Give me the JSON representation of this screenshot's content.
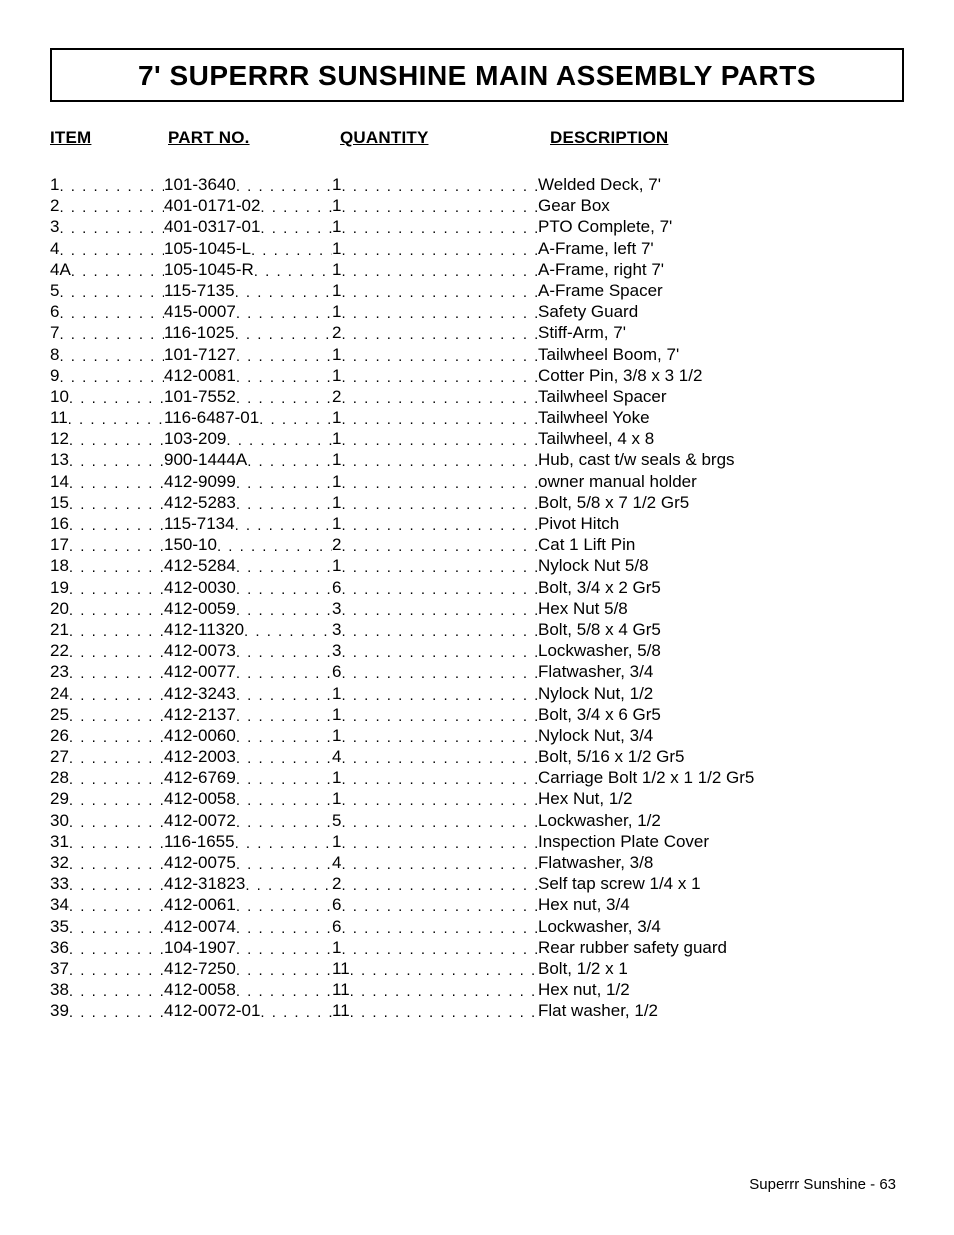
{
  "title": "7' SUPERRR SUNSHINE MAIN ASSEMBLY PARTS",
  "headers": {
    "item": "ITEM",
    "part": "PART NO.",
    "qty": "QUANTITY",
    "desc": "DESCRIPTION"
  },
  "footer": "Superrr Sunshine - 63",
  "rows": [
    {
      "item": "1",
      "part": "101-3640",
      "qty": "1",
      "desc": "Welded Deck, 7'"
    },
    {
      "item": "2",
      "part": "401-0171-02",
      "qty": "1",
      "desc": "Gear Box"
    },
    {
      "item": "3",
      "part": "401-0317-01",
      "qty": "1",
      "desc": "PTO Complete, 7'"
    },
    {
      "item": "4",
      "part": "105-1045-L",
      "qty": "1",
      "desc": "A-Frame, left 7'"
    },
    {
      "item": "4A",
      "part": "105-1045-R",
      "qty": "1",
      "desc": "A-Frame, right 7'"
    },
    {
      "item": "5",
      "part": "115-7135",
      "qty": "1",
      "desc": "A-Frame Spacer"
    },
    {
      "item": "6",
      "part": "415-0007",
      "qty": "1",
      "desc": "Safety Guard"
    },
    {
      "item": "7",
      "part": "116-1025",
      "qty": "2",
      "desc": "Stiff-Arm, 7'"
    },
    {
      "item": "8",
      "part": "101-7127",
      "qty": "1",
      "desc": "Tailwheel Boom, 7'"
    },
    {
      "item": "9",
      "part": "412-0081",
      "qty": "1",
      "desc": "Cotter Pin, 3/8 x 3 1/2"
    },
    {
      "item": "10",
      "part": "101-7552",
      "qty": "2",
      "desc": "Tailwheel Spacer"
    },
    {
      "item": "11",
      "part": "116-6487-01",
      "qty": "1",
      "desc": "Tailwheel Yoke"
    },
    {
      "item": "12",
      "part": "103-209",
      "qty": "1",
      "desc": "Tailwheel, 4 x 8"
    },
    {
      "item": "13",
      "part": "900-1444A",
      "qty": "1",
      "desc": "Hub, cast t/w seals & brgs"
    },
    {
      "item": "14",
      "part": "412-9099",
      "qty": "1",
      "desc": "owner manual holder"
    },
    {
      "item": "15",
      "part": "412-5283",
      "qty": "1",
      "desc": "Bolt, 5/8 x 7 1/2 Gr5"
    },
    {
      "item": "16",
      "part": "115-7134",
      "qty": "1",
      "desc": "Pivot Hitch"
    },
    {
      "item": "17",
      "part": "150-10",
      "qty": "2",
      "desc": "Cat 1 Lift Pin"
    },
    {
      "item": "18",
      "part": "412-5284",
      "qty": "1",
      "desc": "Nylock Nut 5/8"
    },
    {
      "item": "19",
      "part": "412-0030",
      "qty": "6",
      "desc": "Bolt, 3/4 x 2 Gr5"
    },
    {
      "item": "20",
      "part": "412-0059",
      "qty": "3",
      "desc": "Hex Nut 5/8"
    },
    {
      "item": "21",
      "part": "412-11320",
      "qty": "3",
      "desc": "Bolt, 5/8 x 4 Gr5"
    },
    {
      "item": "22",
      "part": "412-0073",
      "qty": "3",
      "desc": "Lockwasher, 5/8"
    },
    {
      "item": "23",
      "part": "412-0077",
      "qty": "6",
      "desc": "Flatwasher, 3/4"
    },
    {
      "item": "24",
      "part": "412-3243",
      "qty": "1",
      "desc": "Nylock Nut, 1/2"
    },
    {
      "item": "25",
      "part": "412-2137",
      "qty": "1",
      "desc": "Bolt, 3/4 x 6 Gr5"
    },
    {
      "item": "26",
      "part": "412-0060",
      "qty": "1",
      "desc": "Nylock Nut, 3/4"
    },
    {
      "item": "27",
      "part": "412-2003",
      "qty": "4",
      "desc": "Bolt, 5/16 x 1/2 Gr5"
    },
    {
      "item": "28",
      "part": "412-6769",
      "qty": "1",
      "desc": "Carriage Bolt 1/2 x 1 1/2 Gr5"
    },
    {
      "item": "29",
      "part": "412-0058",
      "qty": "1",
      "desc": "Hex Nut, 1/2"
    },
    {
      "item": "30",
      "part": "412-0072",
      "qty": "5",
      "desc": "Lockwasher, 1/2"
    },
    {
      "item": "31",
      "part": "116-1655",
      "qty": "1",
      "desc": "Inspection Plate Cover"
    },
    {
      "item": "32",
      "part": "412-0075",
      "qty": "4",
      "desc": "Flatwasher, 3/8"
    },
    {
      "item": "33",
      "part": "412-31823",
      "qty": "2",
      "desc": "Self tap screw 1/4 x 1"
    },
    {
      "item": "34",
      "part": "412-0061",
      "qty": "6",
      "desc": "Hex nut, 3/4"
    },
    {
      "item": "35",
      "part": "412-0074",
      "qty": "6",
      "desc": "Lockwasher, 3/4"
    },
    {
      "item": "36",
      "part": "104-1907",
      "qty": "1",
      "desc": "Rear rubber safety guard"
    },
    {
      "item": "37",
      "part": "412-7250",
      "qty": "11",
      "desc": "Bolt, 1/2 x 1"
    },
    {
      "item": "38",
      "part": "412-0058",
      "qty": "11",
      "desc": "Hex nut, 1/2"
    },
    {
      "item": "39",
      "part": "412-0072-01",
      "qty": "11",
      "desc": "Flat washer, 1/2"
    }
  ]
}
